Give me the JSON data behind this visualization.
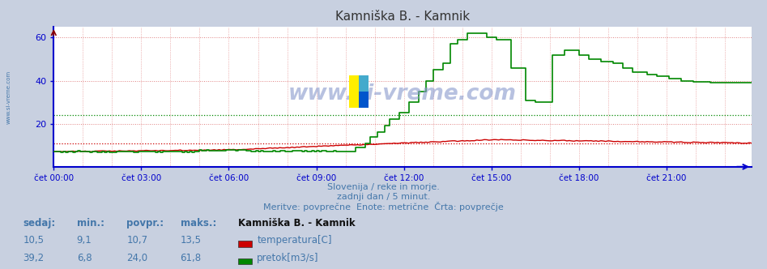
{
  "title": "Kamniška B. - Kamnik",
  "subtitle1": "Slovenija / reke in morje.",
  "subtitle2": "zadnji dan / 5 minut.",
  "subtitle3": "Meritve: povprečne  Enote: metrične  Črta: povprečje",
  "xlabel_times": [
    "čet 00:00",
    "čet 03:00",
    "čet 06:00",
    "čet 09:00",
    "čet 12:00",
    "čet 15:00",
    "čet 18:00",
    "čet 21:00"
  ],
  "ylim": [
    0,
    65
  ],
  "yticks": [
    20,
    40,
    60
  ],
  "xlim": [
    0,
    287
  ],
  "xtick_positions": [
    0,
    36,
    72,
    108,
    144,
    180,
    216,
    252
  ],
  "bg_color": "#c8d0e0",
  "plot_bg_color": "#ffffff",
  "grid_color": "#e08080",
  "temp_color": "#cc0000",
  "flow_color": "#008800",
  "axis_color": "#0000cc",
  "text_color": "#4477aa",
  "label_color": "#336699",
  "temp_avg": 10.7,
  "flow_avg": 24.0,
  "temp_min": 9.1,
  "temp_max": 13.5,
  "flow_min": 6.8,
  "flow_max": 61.8,
  "temp_current": 10.5,
  "flow_current": 39.2,
  "watermark": "www.si-vreme.com",
  "legend_title": "Kamniška B. - Kamnik",
  "legend_items": [
    "temperatura[C]",
    "pretok[m3/s]"
  ],
  "legend_colors": [
    "#cc0000",
    "#008800"
  ],
  "stats_headers": [
    "sedaj:",
    "min.:",
    "povpr.:",
    "maks.:"
  ],
  "stats_temp": [
    "10,5",
    "9,1",
    "10,7",
    "13,5"
  ],
  "stats_flow": [
    "39,2",
    "6,8",
    "24,0",
    "61,8"
  ]
}
